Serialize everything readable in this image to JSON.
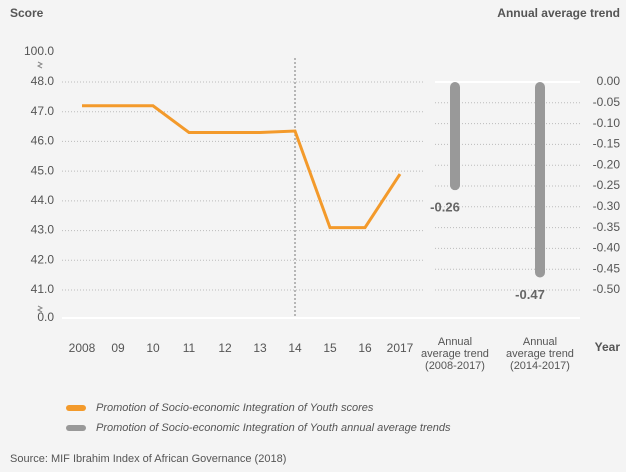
{
  "chart_data": {
    "type": "combo",
    "y_title": "Score",
    "y2_title": "Annual average trend",
    "x_title": "Year",
    "categories": [
      "2008",
      "09",
      "10",
      "11",
      "12",
      "13",
      "14",
      "15",
      "16",
      "2017",
      "Annual\naverage trend\n(2008-2017)",
      "Annual\naverage trend\n(2014-2017)"
    ],
    "series": [
      {
        "name": "Promotion of Socio-economic Integration of Youth scores",
        "type": "line",
        "color": "#f39a2b",
        "values": [
          47.2,
          47.2,
          47.2,
          46.3,
          46.3,
          46.3,
          46.35,
          43.1,
          43.1,
          44.9,
          null,
          null
        ]
      },
      {
        "name": "Promotion of Socio-economic Integration of Youth annual average trends",
        "type": "bar",
        "axis": "y2",
        "color": "#999999",
        "values": [
          null,
          null,
          null,
          null,
          null,
          null,
          null,
          null,
          null,
          null,
          -0.26,
          -0.47
        ],
        "value_labels": [
          null,
          null,
          null,
          null,
          null,
          null,
          null,
          null,
          null,
          null,
          "-0.26",
          "-0.47"
        ]
      }
    ],
    "ylim": [
      0,
      100
    ],
    "yticks": [
      {
        "value": 100,
        "label": "100.0"
      },
      {
        "value": 48,
        "label": "48.0"
      },
      {
        "value": 47,
        "label": "47.0"
      },
      {
        "value": 46,
        "label": "46.0"
      },
      {
        "value": 45,
        "label": "45.0"
      },
      {
        "value": 44,
        "label": "44.0"
      },
      {
        "value": 43,
        "label": "43.0"
      },
      {
        "value": 42,
        "label": "42.0"
      },
      {
        "value": 41,
        "label": "41.0"
      },
      {
        "value": 0,
        "label": "0.0"
      }
    ],
    "y2lim": [
      0,
      -0.5
    ],
    "y2ticks": [
      {
        "value": 0,
        "label": "0.00"
      },
      -0.05,
      {
        "value": -0.1,
        "label": "-0.10"
      },
      -0.15,
      {
        "value": -0.2,
        "label": "-0.20"
      },
      -0.25,
      {
        "value": -0.3,
        "label": "-0.30"
      },
      -0.35,
      {
        "value": -0.4,
        "label": "-0.40"
      },
      -0.45,
      {
        "value": -0.5,
        "label": "-0.50"
      }
    ],
    "marker_line_at": "14",
    "grid": true,
    "source": "Source: MIF Ibrahim Index of African Governance (2018)"
  }
}
